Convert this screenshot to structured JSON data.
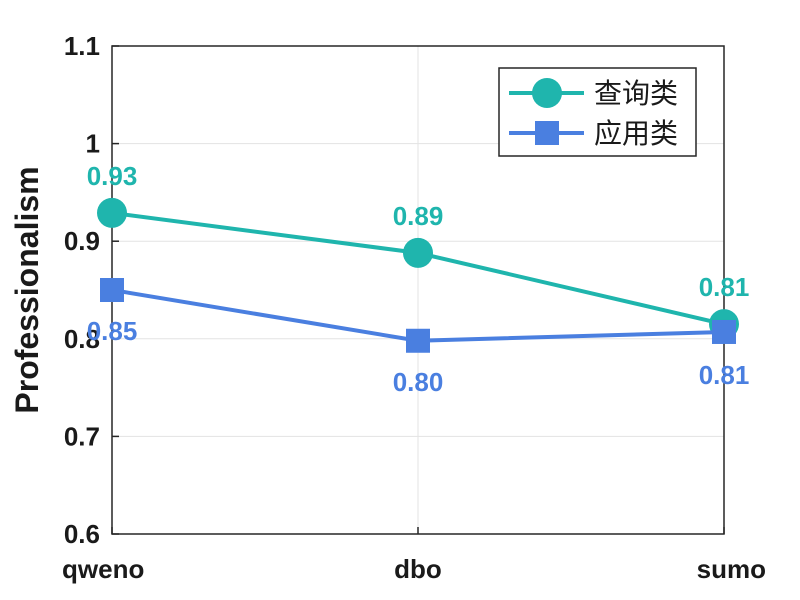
{
  "chart_data": {
    "type": "line",
    "categories": [
      "qweno",
      "dbo",
      "sumo"
    ],
    "series": [
      {
        "name": "查询类",
        "values": [
          0.929,
          0.888,
          0.815
        ],
        "labels": [
          "0.93",
          "0.89",
          "0.81"
        ],
        "color": "#1fb5ad",
        "marker": "circle"
      },
      {
        "name": "应用类",
        "values": [
          0.85,
          0.798,
          0.807
        ],
        "labels": [
          "0.85",
          "0.80",
          "0.81"
        ],
        "color": "#4a7fe0",
        "marker": "square"
      }
    ],
    "xlabel": "",
    "ylabel": "Professionalism",
    "ylim": [
      0.6,
      1.1
    ],
    "yticks": [
      "0.6",
      "0.7",
      "0.8",
      "0.9",
      "1",
      "1.1"
    ],
    "grid": true,
    "legend_position": "top-right"
  }
}
